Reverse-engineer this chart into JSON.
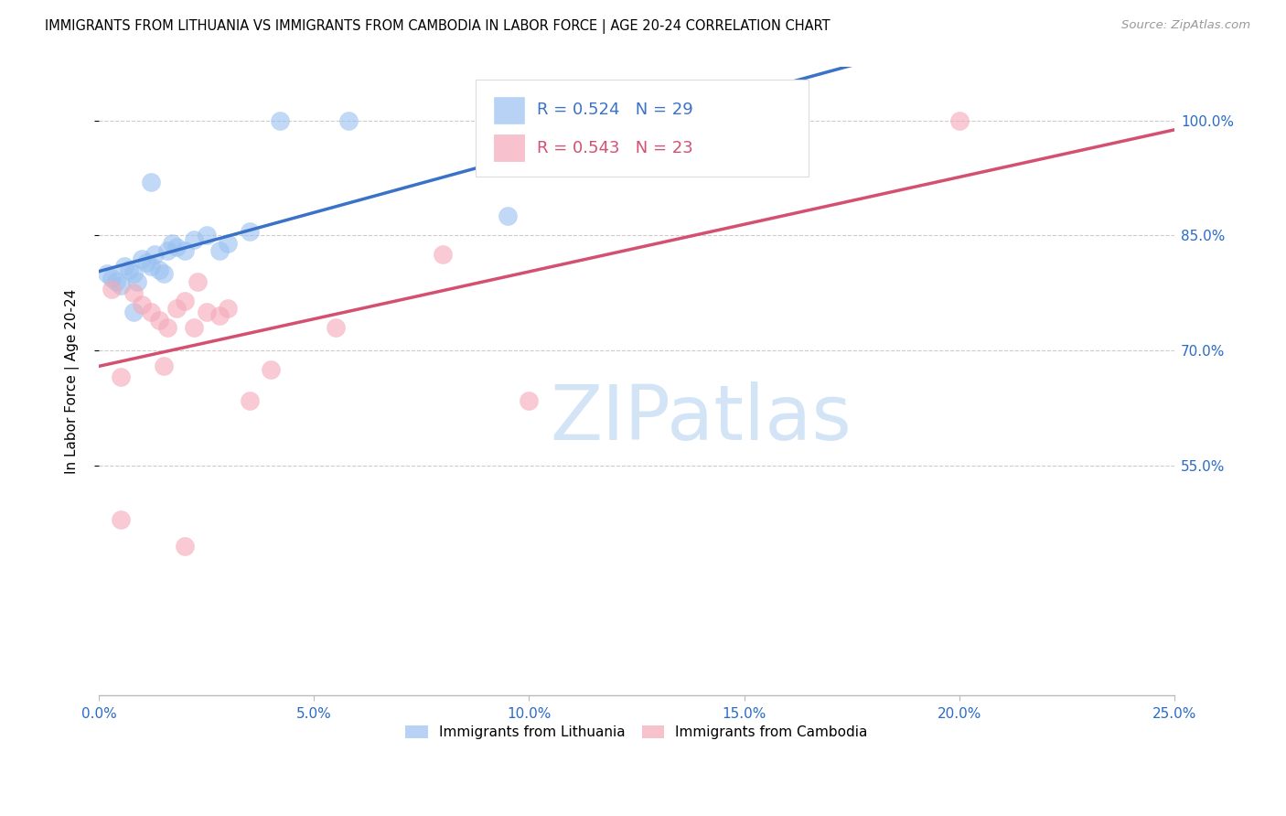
{
  "title": "IMMIGRANTS FROM LITHUANIA VS IMMIGRANTS FROM CAMBODIA IN LABOR FORCE | AGE 20-24 CORRELATION CHART",
  "source": "Source: ZipAtlas.com",
  "ylabel": "In Labor Force | Age 20-24",
  "xlim": [
    0.0,
    25.0
  ],
  "ylim": [
    25.0,
    107.0
  ],
  "xtick_vals": [
    0,
    5,
    10,
    15,
    20,
    25
  ],
  "ytick_vals": [
    55.0,
    70.0,
    85.0,
    100.0
  ],
  "R_blue": "0.524",
  "N_blue": "29",
  "R_pink": "0.543",
  "N_pink": "23",
  "blue_scatter_color": "#99c0f0",
  "pink_scatter_color": "#f5a8b8",
  "blue_line_color": "#3a72c8",
  "pink_line_color": "#d45070",
  "legend_label_blue": "Immigrants from Lithuania",
  "legend_label_pink": "Immigrants from Cambodia",
  "watermark": "ZIPatlas",
  "lith_x": [
    0.2,
    0.3,
    0.4,
    0.5,
    0.6,
    0.7,
    0.8,
    0.9,
    1.0,
    1.1,
    1.2,
    1.3,
    1.4,
    1.5,
    1.7,
    1.8,
    2.0,
    2.2,
    2.5,
    3.0,
    3.5,
    4.2,
    5.8,
    9.5,
    14.5,
    1.6,
    2.8,
    1.2,
    0.8
  ],
  "lith_y": [
    80.0,
    79.5,
    79.0,
    78.5,
    81.0,
    80.5,
    80.0,
    79.0,
    82.0,
    81.5,
    81.0,
    82.5,
    80.5,
    80.0,
    84.0,
    83.5,
    83.0,
    84.5,
    85.0,
    84.0,
    85.5,
    100.0,
    100.0,
    87.5,
    100.0,
    83.0,
    83.0,
    92.0,
    75.0
  ],
  "camb_x": [
    0.3,
    0.5,
    0.8,
    1.0,
    1.2,
    1.4,
    1.6,
    1.8,
    2.0,
    2.2,
    2.5,
    2.8,
    3.0,
    3.5,
    5.5,
    8.0,
    10.0,
    20.0,
    2.0,
    2.3,
    0.5,
    4.0,
    1.5
  ],
  "camb_y": [
    78.0,
    48.0,
    77.5,
    76.0,
    75.0,
    74.0,
    73.0,
    75.5,
    76.5,
    73.0,
    75.0,
    74.5,
    75.5,
    63.5,
    73.0,
    82.5,
    63.5,
    100.0,
    44.5,
    79.0,
    66.5,
    67.5,
    68.0
  ]
}
